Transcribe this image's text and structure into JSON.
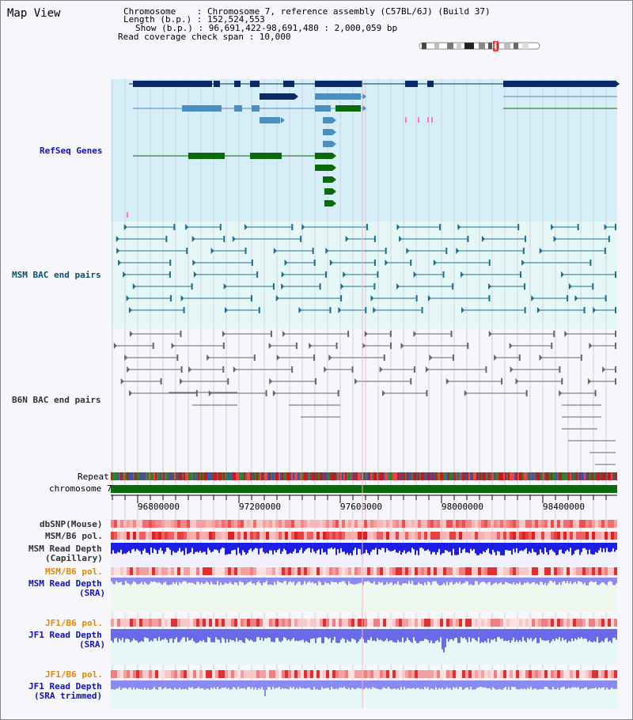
{
  "view_title": "Map View",
  "header": {
    "chromosome_line": "Chromosome    : Chromosome 7, reference assembly (C57BL/6J) (Build 37)",
    "length_line": "Length (b.p.) : 152,524,553",
    "show_line": "Show (b.p.) : 96,691,422-98,691,480 : 2,000,059 bp",
    "coverage_line": "Read coverage check span : 10,000"
  },
  "tracks": {
    "refseq": "RefSeq Genes",
    "msm_bac": "MSM BAC end pairs",
    "b6n_bac": "B6N BAC end pairs",
    "repeat": "Repeat",
    "chromosome": "chromosome 7",
    "dbsnp": "dbSNP(Mouse)",
    "msm_b6_pol_1": "MSM/B6 pol.",
    "msm_read_depth_cap_1": "MSM Read Depth",
    "msm_read_depth_cap_2": "(Capillary)",
    "msm_b6_pol_2": "MSM/B6 pol.",
    "msm_read_depth_sra_1": "MSM Read Depth",
    "msm_read_depth_sra_2": "(SRA)",
    "jf1_b6_pol_1": "JF1/B6 pol.",
    "jf1_read_depth_sra_1": "JF1 Read Depth",
    "jf1_read_depth_sra_2": "(SRA)",
    "jf1_b6_pol_2": "JF1/B6 pol.",
    "jf1_read_depth_trim_1": "JF1 Read Depth",
    "jf1_read_depth_trim_2": "(SRA trimmed)"
  },
  "axis_ticks": [
    "96800000",
    "97200000",
    "97600000",
    "98000000",
    "98400000"
  ],
  "colors": {
    "refseq_bg": "#d6eef8",
    "msm_bg": "#e6f7f7",
    "b6n_bg": "#f6f6fb",
    "gene_dark": "#0a2a66",
    "gene_mid": "#4a8fbf",
    "gene_green": "#0a6a0a",
    "chromosome": "#0a6a0a",
    "depth_blue": "#1e1ee0",
    "depth_light": "#8a8af0"
  }
}
